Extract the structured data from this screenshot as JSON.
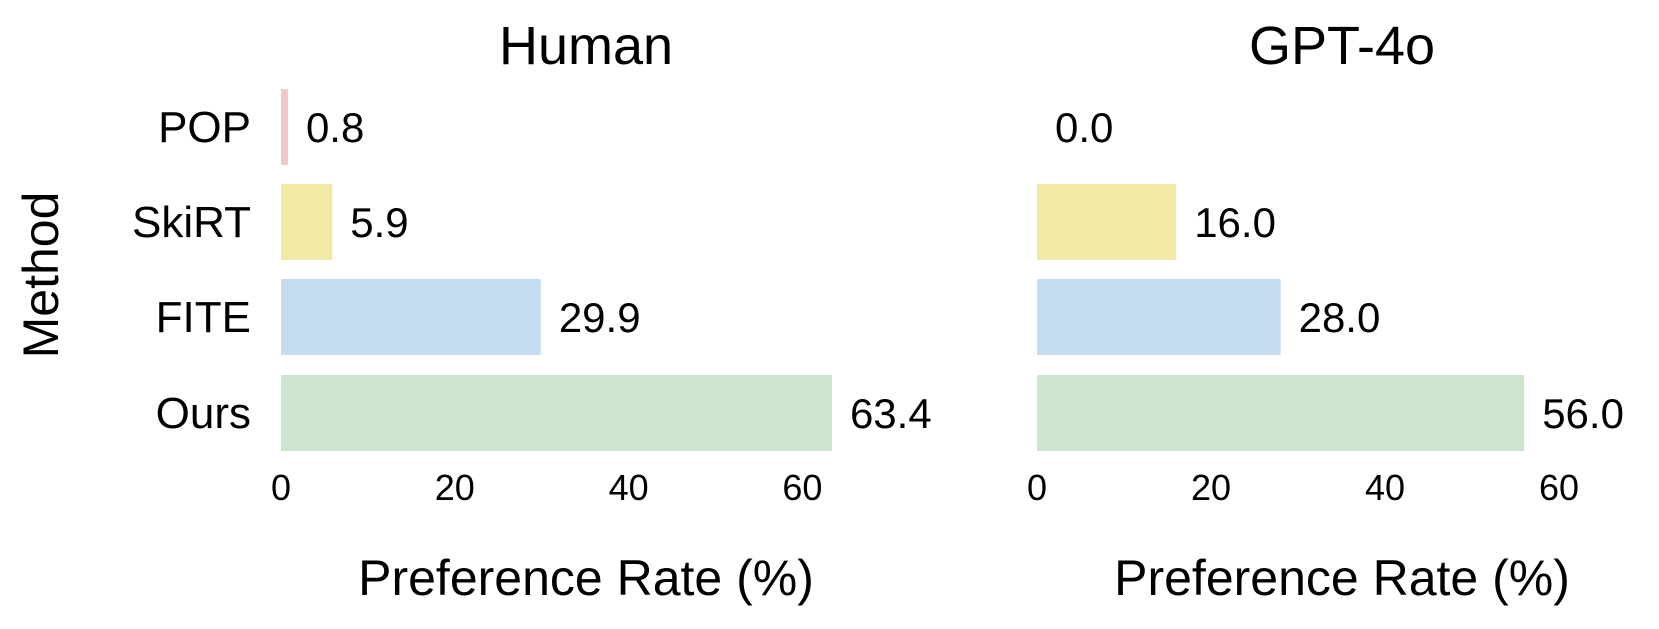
{
  "figure": {
    "ylabel": "Method"
  },
  "chart_data": [
    {
      "type": "bar",
      "orientation": "horizontal",
      "title": "Human",
      "categories": [
        "POP",
        "SkiRT",
        "FITE",
        "Ours"
      ],
      "values": [
        0.8,
        5.9,
        29.9,
        63.4
      ],
      "value_labels": [
        "0.8",
        "5.9",
        "29.9",
        "63.4"
      ],
      "colors": [
        "#f4c7cb",
        "#f1e9a6",
        "#c5ddf1",
        "#cde4cd"
      ],
      "xlabel": "Preference Rate (%)",
      "ylabel": "Method",
      "xlim": [
        0,
        75
      ],
      "xticks": [
        0,
        20,
        40,
        60
      ],
      "grid": false
    },
    {
      "type": "bar",
      "orientation": "horizontal",
      "title": "GPT-4o",
      "categories": [
        "POP",
        "SkiRT",
        "FITE",
        "Ours"
      ],
      "values": [
        0.0,
        16.0,
        28.0,
        56.0
      ],
      "value_labels": [
        "0.0",
        "16.0",
        "28.0",
        "56.0"
      ],
      "colors": [
        "#f4c7cb",
        "#f1e9a6",
        "#c5ddf1",
        "#cde4cd"
      ],
      "xlabel": "Preference Rate (%)",
      "ylabel": "",
      "xlim": [
        0,
        75
      ],
      "xticks": [
        0,
        20,
        40,
        60
      ],
      "grid": false
    }
  ]
}
